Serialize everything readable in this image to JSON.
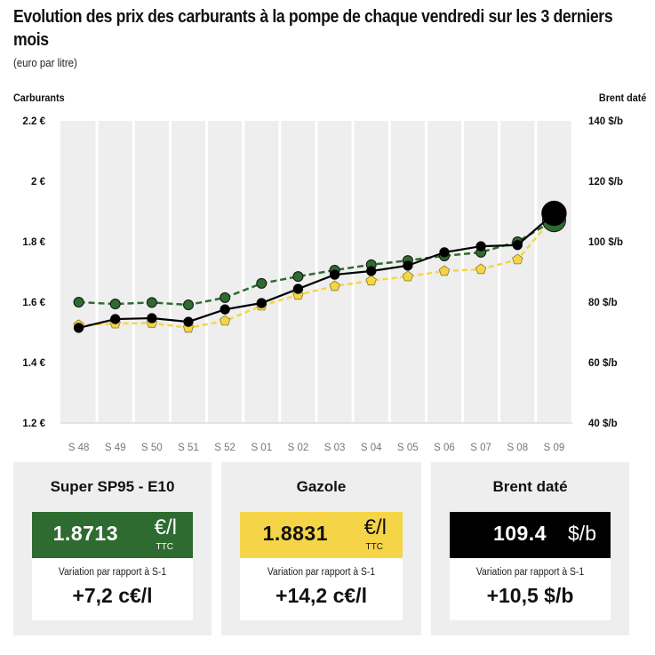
{
  "header": {
    "title": "Evolution des prix des carburants à la pompe de chaque vendredi sur les 3 derniers mois",
    "subtitle": "(euro par litre)",
    "left_axis_title": "Carburants",
    "right_axis_title": "Brent daté"
  },
  "axes": {
    "left_ticks": [
      "2.2 €",
      "2 €",
      "1.8 €",
      "1.6 €",
      "1.4 €",
      "1.2 €"
    ],
    "right_ticks": [
      "140 $/b",
      "120 $/b",
      "100 $/b",
      "80 $/b",
      "60 $/b",
      "40 $/b"
    ],
    "x_ticks": [
      "S 48",
      "S 49",
      "S 50",
      "S 51",
      "S 52",
      "S 01",
      "S 02",
      "S 03",
      "S 04",
      "S 05",
      "S 06",
      "S 07",
      "S 08",
      "S 09"
    ]
  },
  "colors": {
    "sp95": "#2e6b30",
    "gazole": "#f5d547",
    "brent": "#000000",
    "plot_bg": "#eeeeee",
    "card_bg": "#eeeeee"
  },
  "chart_data": {
    "type": "line",
    "title": "Evolution des prix des carburants à la pompe de chaque vendredi sur les 3 derniers mois",
    "subtitle": "(euro par litre)",
    "xlabel": "",
    "ylabel": "Carburants",
    "ylabel_right": "Brent daté",
    "ylim": [
      1.2,
      2.2
    ],
    "ylim_right": [
      40,
      140
    ],
    "grid": false,
    "legend": "none (values shown in cards below)",
    "categories": [
      "S 48",
      "S 49",
      "S 50",
      "S 51",
      "S 52",
      "S 01",
      "S 02",
      "S 03",
      "S 04",
      "S 05",
      "S 06",
      "S 07",
      "S 08",
      "S 09"
    ],
    "series": [
      {
        "name": "Super SP95 - E10",
        "axis": "left",
        "unit": "€/l",
        "style": "dashed, green circles",
        "values": [
          1.6,
          1.594,
          1.599,
          1.591,
          1.615,
          1.662,
          1.685,
          1.706,
          1.724,
          1.738,
          1.753,
          1.765,
          1.8,
          1.8713
        ]
      },
      {
        "name": "Gazole",
        "axis": "left",
        "unit": "€/l",
        "style": "dashed, yellow pentagons",
        "values": [
          1.524,
          1.529,
          1.531,
          1.515,
          1.538,
          1.588,
          1.624,
          1.653,
          1.671,
          1.685,
          1.703,
          1.709,
          1.741,
          1.8831
        ]
      },
      {
        "name": "Brent daté",
        "axis": "right",
        "unit": "$/b",
        "style": "solid, black circles",
        "values": [
          71.5,
          74.4,
          74.7,
          73.5,
          77.6,
          79.7,
          84.4,
          89.1,
          90.3,
          92.1,
          96.5,
          98.5,
          98.9,
          109.4
        ]
      }
    ]
  },
  "cards": [
    {
      "title": "Super SP95 - E10",
      "value": "1.8713",
      "unit": "€/l",
      "unit_sub": "TTC",
      "variation_label": "Variation par rapport à S-1",
      "variation": "+7,2 c€/l",
      "box_color": "#2e6b30",
      "text_color": "#ffffff"
    },
    {
      "title": "Gazole",
      "value": "1.8831",
      "unit": "€/l",
      "unit_sub": "TTC",
      "variation_label": "Variation par rapport à S-1",
      "variation": "+14,2 c€/l",
      "box_color": "#f5d547",
      "text_color": "#111111"
    },
    {
      "title": "Brent daté",
      "value": "109.4",
      "unit": "$/b",
      "unit_sub": "",
      "variation_label": "Variation par rapport à S-1",
      "variation": "+10,5 $/b",
      "box_color": "#000000",
      "text_color": "#ffffff"
    }
  ]
}
